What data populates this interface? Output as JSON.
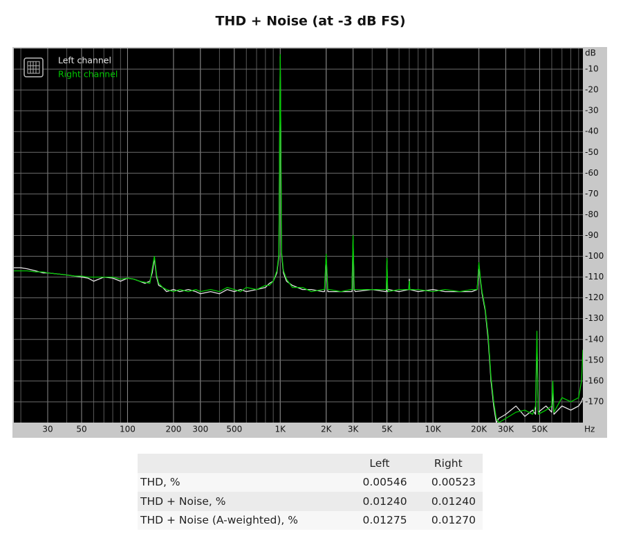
{
  "chart_data": {
    "type": "line",
    "title": "THD + Noise (at -3 dB FS)",
    "x_label": "Hz",
    "y_label": "dB",
    "x_log": true,
    "grid": true,
    "legend": "top-left",
    "xlim": [
      18,
      96000
    ],
    "ylim": [
      -180,
      0
    ],
    "xticks": [
      30,
      50,
      100,
      200,
      300,
      500,
      {
        "value": 1000,
        "label": "1K"
      },
      {
        "value": 2000,
        "label": "2K"
      },
      {
        "value": 3000,
        "label": "3K"
      },
      {
        "value": 5000,
        "label": "5K"
      },
      {
        "value": 10000,
        "label": "10K"
      },
      {
        "value": 20000,
        "label": "20K"
      },
      {
        "value": 30000,
        "label": "30K"
      },
      {
        "value": 50000,
        "label": "50K"
      }
    ],
    "yticks": [
      -10,
      -20,
      -30,
      -40,
      -50,
      -60,
      -70,
      -80,
      -90,
      -100,
      -110,
      -120,
      -130,
      -140,
      -150,
      -160,
      -170
    ],
    "x": [
      18,
      20,
      22,
      25,
      28,
      30,
      35,
      40,
      45,
      50,
      55,
      60,
      70,
      80,
      90,
      100,
      110,
      120,
      130,
      140,
      145,
      150,
      155,
      160,
      170,
      180,
      200,
      220,
      250,
      280,
      300,
      350,
      400,
      450,
      500,
      550,
      600,
      700,
      800,
      850,
      900,
      950,
      980,
      1000,
      1020,
      1050,
      1100,
      1200,
      1400,
      1600,
      1900,
      1950,
      2000,
      2050,
      2100,
      2500,
      2900,
      2950,
      3000,
      3050,
      3100,
      4000,
      4900,
      4950,
      5000,
      5050,
      5100,
      6000,
      6950,
      7000,
      7050,
      8000,
      10000,
      12000,
      15000,
      18000,
      19500,
      20000,
      20500,
      21000,
      22000,
      23000,
      24000,
      25000,
      26000,
      27000,
      30000,
      35000,
      40000,
      45000,
      47000,
      48000,
      49000,
      55000,
      60000,
      61000,
      62000,
      70000,
      80000,
      90000,
      94000,
      96000
    ],
    "series": [
      {
        "name": "Left channel",
        "color": "#e6e6e6",
        "values": [
          -105.5,
          -105.5,
          -106,
          -107,
          -108,
          -108,
          -108.5,
          -109,
          -109.5,
          -110,
          -110.5,
          -112,
          -110,
          -110.5,
          -112,
          -110.5,
          -111,
          -112,
          -113,
          -112,
          -108,
          -101,
          -110,
          -114,
          -115,
          -117,
          -116,
          -117,
          -116,
          -117,
          -118,
          -117,
          -118,
          -116,
          -117,
          -116,
          -117,
          -116,
          -115,
          -113,
          -112,
          -108,
          -100,
          -4,
          -99,
          -108,
          -112,
          -114,
          -116,
          -116,
          -117,
          -117,
          -100,
          -117,
          -117,
          -117,
          -117,
          -117,
          -92,
          -116,
          -117,
          -116,
          -117,
          -117,
          -102,
          -117,
          -116,
          -117,
          -116,
          -111,
          -116,
          -117,
          -116,
          -117,
          -117,
          -117,
          -116,
          -104,
          -112,
          -118,
          -126,
          -140,
          -160,
          -172,
          -180,
          -178,
          -176,
          -172,
          -177,
          -174,
          -176,
          -140,
          -175,
          -172,
          -175,
          -165,
          -176,
          -172,
          -174,
          -172,
          -170,
          -168
        ]
      },
      {
        "name": "Right channel",
        "color": "#00c800",
        "values": [
          -107,
          -107,
          -107,
          -107.5,
          -107.5,
          -108,
          -108.5,
          -109,
          -109.5,
          -109.5,
          -110,
          -110,
          -110,
          -110,
          -111,
          -110.5,
          -111,
          -112,
          -112.5,
          -113,
          -106,
          -100,
          -109,
          -113,
          -115,
          -116,
          -117,
          -116,
          -117,
          -116,
          -117,
          -116,
          -117,
          -115,
          -116,
          -117,
          -115,
          -116,
          -114,
          -114,
          -112,
          -107,
          -99,
          -3,
          -98,
          -107,
          -111,
          -115,
          -115,
          -117,
          -116,
          -116,
          -99,
          -116,
          -116,
          -117,
          -116,
          -116,
          -90,
          -116,
          -116,
          -116,
          -116,
          -116,
          -101,
          -116,
          -117,
          -116,
          -116,
          -112,
          -116,
          -116,
          -117,
          -116,
          -117,
          -116,
          -116,
          -103,
          -111,
          -117,
          -125,
          -138,
          -158,
          -170,
          -178,
          -180,
          -178,
          -175,
          -174,
          -176,
          -172,
          -136,
          -176,
          -174,
          -172,
          -160,
          -175,
          -168,
          -170,
          -168,
          -160,
          -145
        ]
      }
    ]
  },
  "table": {
    "columns": [
      "Left",
      "Right"
    ],
    "rows": [
      [
        "THD, %",
        "0.00546",
        "0.00523"
      ],
      [
        "THD + Noise, %",
        "0.01240",
        "0.01240"
      ],
      [
        "THD + Noise (A-weighted), %",
        "0.01275",
        "0.01270"
      ]
    ]
  }
}
